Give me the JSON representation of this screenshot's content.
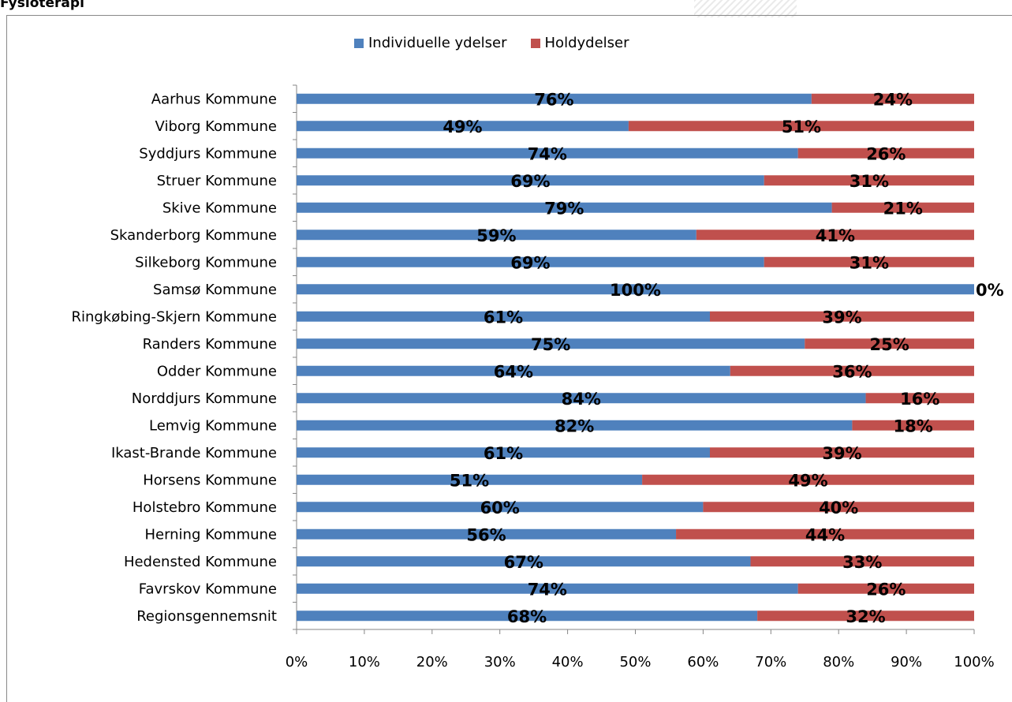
{
  "page": {
    "heading": "Fysioterapi"
  },
  "chart_data": {
    "type": "bar",
    "orientation": "horizontal",
    "stacked": true,
    "categories": [
      "Aarhus Kommune",
      "Viborg Kommune",
      "Syddjurs Kommune",
      "Struer Kommune",
      "Skive Kommune",
      "Skanderborg Kommune",
      "Silkeborg Kommune",
      "Samsø Kommune",
      "Ringkøbing-Skjern Kommune",
      "Randers Kommune",
      "Odder Kommune",
      "Norddjurs Kommune",
      "Lemvig Kommune",
      "Ikast-Brande Kommune",
      "Horsens Kommune",
      "Holstebro Kommune",
      "Herning Kommune",
      "Hedensted Kommune",
      "Favrskov Kommune",
      "Regionsgennemsnit"
    ],
    "series": [
      {
        "name": "Individuelle ydelser",
        "color": "#4F81BD",
        "values": [
          76,
          49,
          74,
          69,
          79,
          59,
          69,
          100,
          61,
          75,
          64,
          84,
          82,
          61,
          51,
          60,
          56,
          67,
          74,
          68
        ],
        "labels": [
          "76%",
          "49%",
          "74%",
          "69%",
          "79%",
          "59%",
          "69%",
          "100%",
          "61%",
          "75%",
          "64%",
          "84%",
          "82%",
          "61%",
          "51%",
          "60%",
          "56%",
          "67%",
          "74%",
          "68%"
        ]
      },
      {
        "name": "Holdydelser",
        "color": "#C0504D",
        "values": [
          24,
          51,
          26,
          31,
          21,
          41,
          31,
          0,
          39,
          25,
          36,
          16,
          18,
          39,
          49,
          40,
          44,
          33,
          26,
          32
        ],
        "labels": [
          "24%",
          "51%",
          "26%",
          "31%",
          "21%",
          "41%",
          "31%",
          "0%",
          "39%",
          "25%",
          "36%",
          "16%",
          "18%",
          "39%",
          "49%",
          "40%",
          "44%",
          "33%",
          "26%",
          "32%"
        ]
      }
    ],
    "xlim": [
      0,
      100
    ],
    "xticks": [
      "0%",
      "10%",
      "20%",
      "30%",
      "40%",
      "50%",
      "60%",
      "70%",
      "80%",
      "90%",
      "100%"
    ],
    "legend": "top",
    "grid": false
  }
}
